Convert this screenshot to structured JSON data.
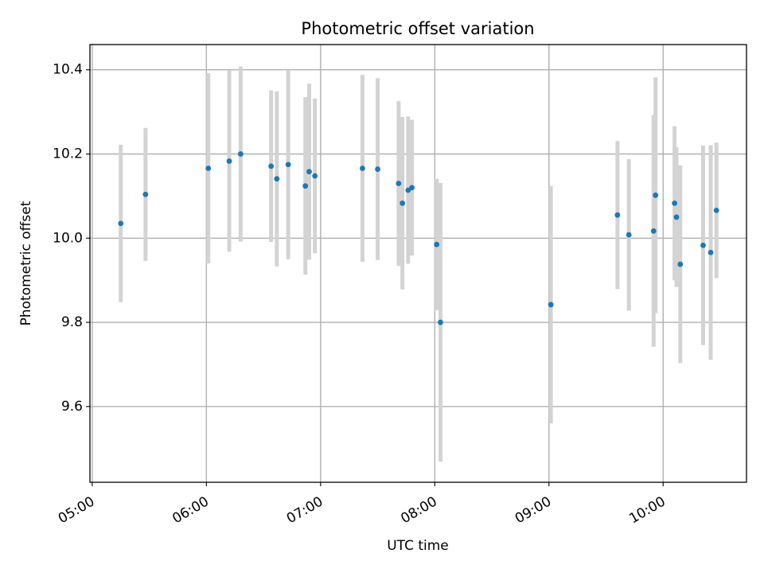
{
  "chart_data": {
    "type": "scatter",
    "title": "Photometric offset variation",
    "xlabel": "UTC time",
    "ylabel": "Photometric offset",
    "x_range_hours": [
      4.98,
      10.73
    ],
    "ylim": [
      9.42,
      10.46
    ],
    "xticks": [
      {
        "hour": 5,
        "label": "05:00"
      },
      {
        "hour": 6,
        "label": "06:00"
      },
      {
        "hour": 7,
        "label": "07:00"
      },
      {
        "hour": 8,
        "label": "08:00"
      },
      {
        "hour": 9,
        "label": "09:00"
      },
      {
        "hour": 10,
        "label": "10:00"
      }
    ],
    "yticks": [
      {
        "value": 9.6,
        "label": "9.6"
      },
      {
        "value": 9.8,
        "label": "9.8"
      },
      {
        "value": 10.0,
        "label": "10.0"
      },
      {
        "value": 10.2,
        "label": "10.2"
      },
      {
        "value": 10.4,
        "label": "10.4"
      }
    ],
    "grid": true,
    "point_color": "#1f77b4",
    "errorbar_color": "#d3d3d3",
    "points": [
      {
        "t": "05:15",
        "y": 10.035,
        "err": 0.187
      },
      {
        "t": "05:28",
        "y": 10.104,
        "err": 0.158
      },
      {
        "t": "06:01",
        "y": 10.166,
        "err": 0.226
      },
      {
        "t": "06:12",
        "y": 10.183,
        "err": 0.215
      },
      {
        "t": "06:18",
        "y": 10.2,
        "err": 0.208
      },
      {
        "t": "06:34",
        "y": 10.171,
        "err": 0.18
      },
      {
        "t": "06:37",
        "y": 10.141,
        "err": 0.208
      },
      {
        "t": "06:43",
        "y": 10.175,
        "err": 0.225
      },
      {
        "t": "06:52",
        "y": 10.124,
        "err": 0.211
      },
      {
        "t": "06:54",
        "y": 10.158,
        "err": 0.209
      },
      {
        "t": "06:57",
        "y": 10.148,
        "err": 0.184
      },
      {
        "t": "07:22",
        "y": 10.166,
        "err": 0.222
      },
      {
        "t": "07:30",
        "y": 10.164,
        "err": 0.216
      },
      {
        "t": "07:41",
        "y": 10.13,
        "err": 0.196
      },
      {
        "t": "07:43",
        "y": 10.083,
        "err": 0.205
      },
      {
        "t": "07:46",
        "y": 10.114,
        "err": 0.175
      },
      {
        "t": "07:48",
        "y": 10.12,
        "err": 0.161
      },
      {
        "t": "08:01",
        "y": 9.985,
        "err": 0.156
      },
      {
        "t": "08:03",
        "y": 9.8,
        "err": 0.331
      },
      {
        "t": "09:01",
        "y": 9.842,
        "err": 0.282
      },
      {
        "t": "09:36",
        "y": 10.055,
        "err": 0.176
      },
      {
        "t": "09:42",
        "y": 10.008,
        "err": 0.18
      },
      {
        "t": "09:55",
        "y": 10.017,
        "err": 0.275
      },
      {
        "t": "09:56",
        "y": 10.102,
        "err": 0.28
      },
      {
        "t": "10:06",
        "y": 10.083,
        "err": 0.183
      },
      {
        "t": "10:07",
        "y": 10.05,
        "err": 0.166
      },
      {
        "t": "10:09",
        "y": 9.938,
        "err": 0.235
      },
      {
        "t": "10:21",
        "y": 9.983,
        "err": 0.237
      },
      {
        "t": "10:25",
        "y": 9.966,
        "err": 0.255
      },
      {
        "t": "10:28",
        "y": 10.066,
        "err": 0.161
      }
    ]
  }
}
